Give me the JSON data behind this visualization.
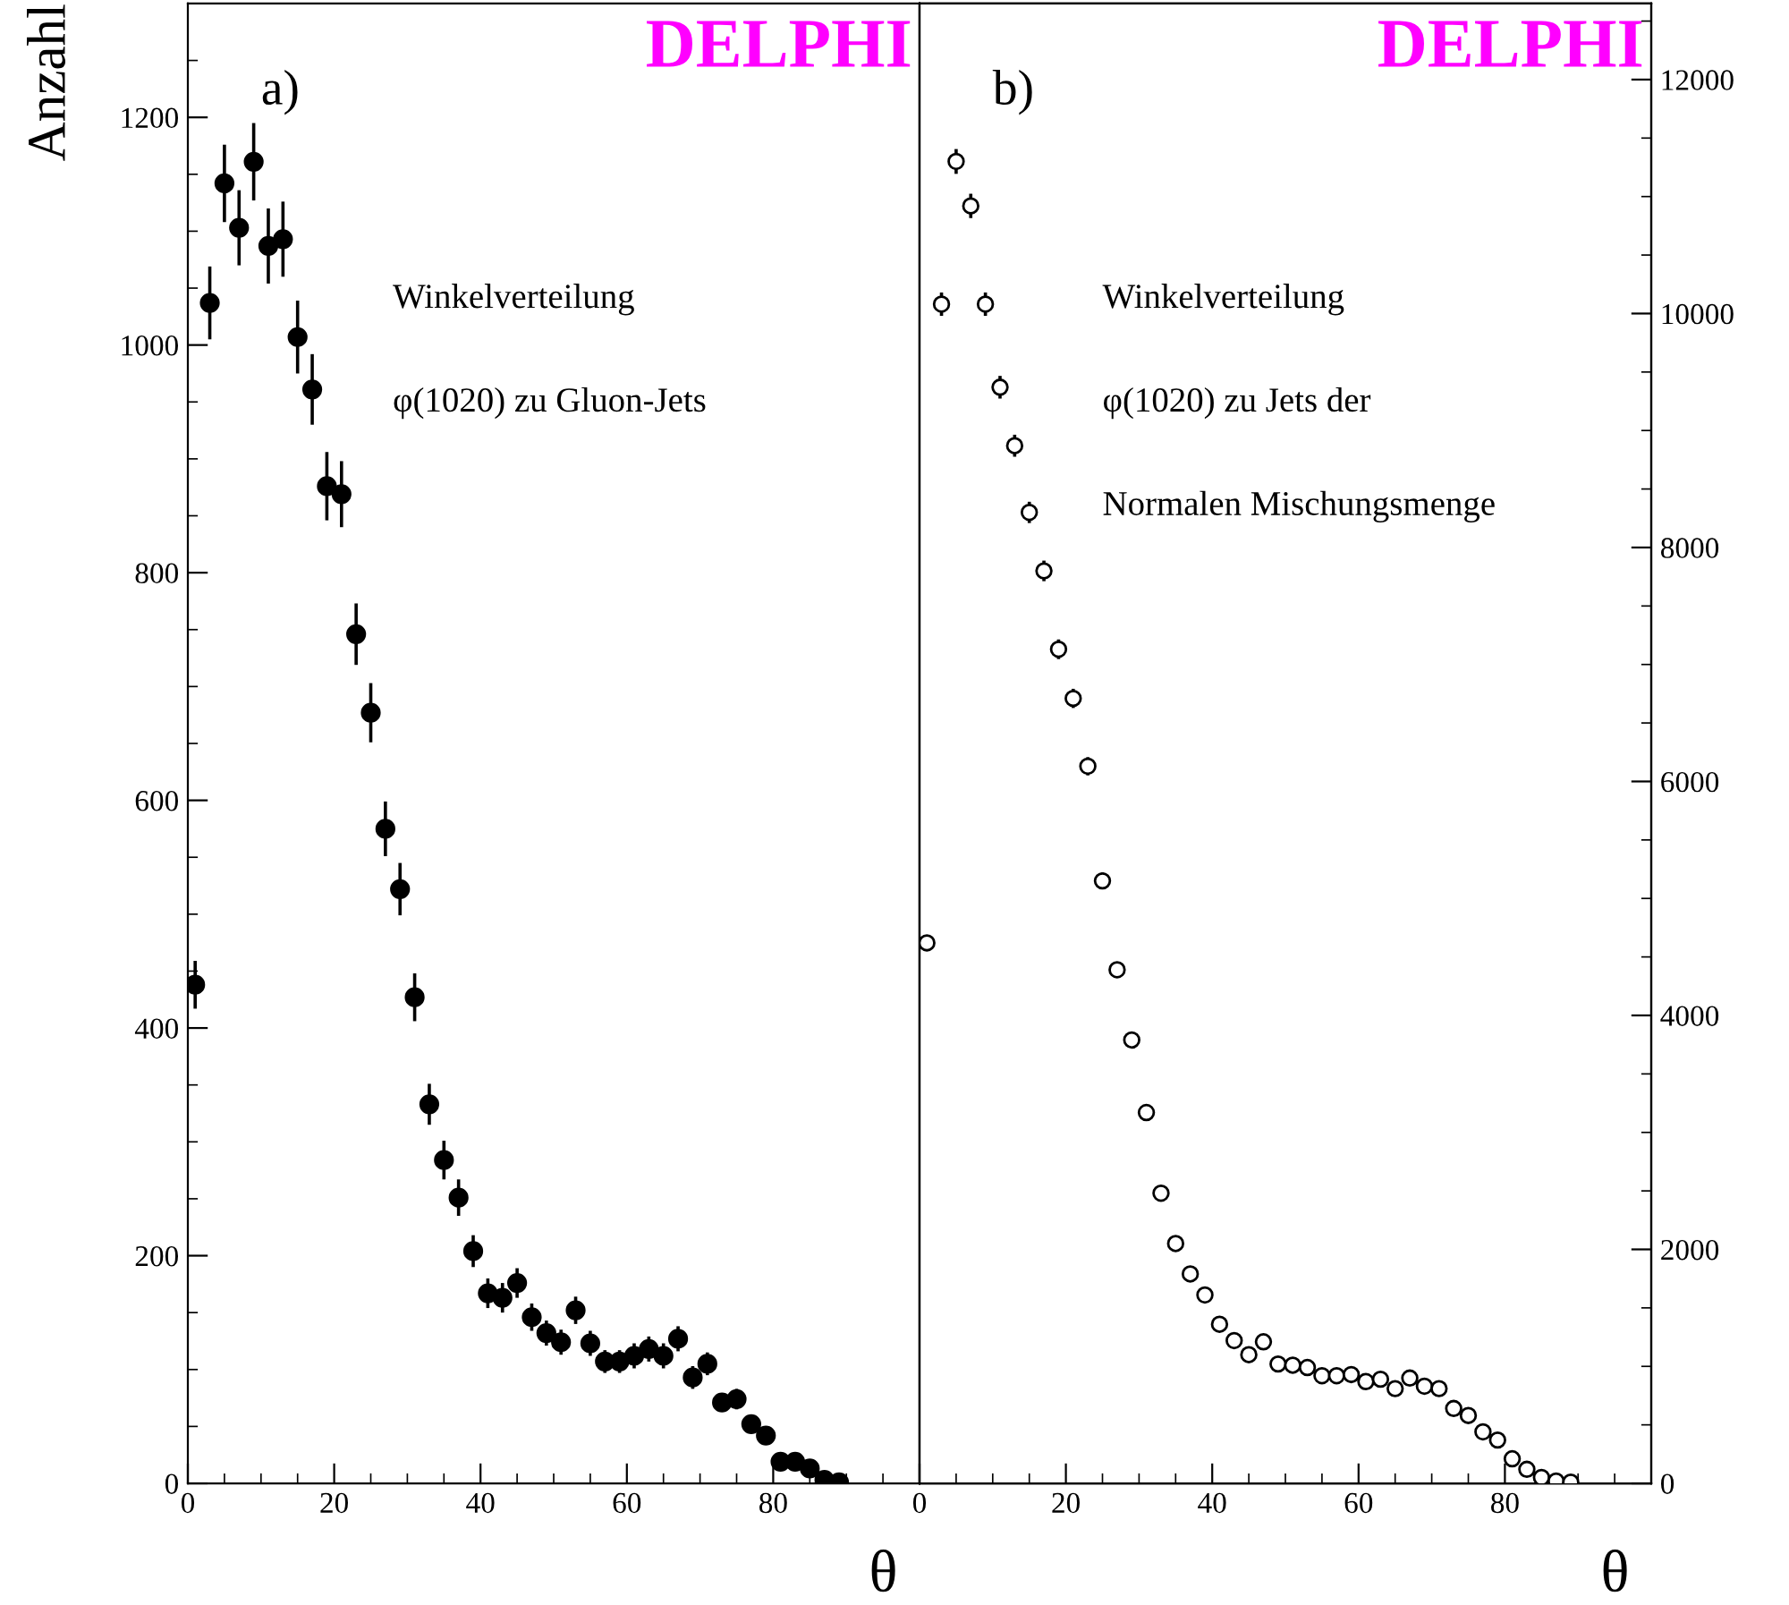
{
  "chart_data": [
    {
      "type": "scatter",
      "ylabel": "Anzahl",
      "xlabel": "θ",
      "marker": "circle",
      "grid": false,
      "annotations": [
        "DELPHI",
        "a)",
        "Winkelverteilung",
        "φ(1020) zu Gluon-Jets"
      ],
      "xlim": [
        0,
        100
      ],
      "xticks": [
        0,
        20,
        40,
        60,
        80
      ],
      "ylim": [
        0,
        1300
      ],
      "yticks": [
        0,
        200,
        400,
        600,
        800,
        1000,
        1200
      ],
      "x": [
        1,
        3,
        5,
        7,
        9,
        11,
        13,
        15,
        17,
        19,
        21,
        23,
        25,
        27,
        29,
        31,
        33,
        35,
        37,
        39,
        41,
        43,
        45,
        47,
        49,
        51,
        53,
        55,
        57,
        59,
        61,
        63,
        65,
        67,
        69,
        71,
        73,
        75,
        77,
        79,
        81,
        83,
        85,
        87,
        89
      ],
      "series": [
        {
          "color": "#000000",
          "values": [
            438,
            1037,
            1142,
            1103,
            1161,
            1087,
            1093,
            1007,
            961,
            876,
            869,
            746,
            677,
            575,
            522,
            427,
            333,
            284,
            251,
            204,
            167,
            163,
            176,
            146,
            132,
            124,
            152,
            123,
            107,
            107,
            112,
            118,
            112,
            127,
            93,
            105,
            71,
            74,
            52,
            42,
            19,
            19,
            13,
            3,
            1
          ],
          "errors": [
            21,
            32,
            34,
            33,
            34,
            33,
            33,
            32,
            31,
            30,
            29,
            27,
            26,
            24,
            23,
            21,
            18,
            17,
            16,
            14,
            13,
            13,
            13,
            12,
            11,
            11,
            12,
            11,
            10,
            10,
            11,
            11,
            11,
            11,
            10,
            10,
            8,
            9,
            7,
            6,
            4,
            4,
            4,
            2,
            1
          ]
        }
      ]
    },
    {
      "type": "scatter",
      "xlabel": "θ",
      "marker": "circle",
      "grid": false,
      "annotations": [
        "DELPHI",
        "b)",
        "Winkelverteilung",
        "φ(1020) zu Jets der",
        "Normalen Mischungsmenge"
      ],
      "xlim": [
        0,
        100
      ],
      "xticks": [
        0,
        20,
        40,
        60,
        80
      ],
      "y2lim": [
        0,
        12650
      ],
      "y2ticks": [
        0,
        2000,
        4000,
        6000,
        8000,
        10000,
        12000
      ],
      "x": [
        1,
        3,
        5,
        7,
        9,
        11,
        13,
        15,
        17,
        19,
        21,
        23,
        25,
        27,
        29,
        31,
        33,
        35,
        37,
        39,
        41,
        43,
        45,
        47,
        49,
        51,
        53,
        55,
        57,
        59,
        61,
        63,
        65,
        67,
        69,
        71,
        73,
        75,
        77,
        79,
        81,
        83,
        85,
        87,
        89
      ],
      "series": [
        {
          "color": "#000000",
          "axis": "y2",
          "values": [
            4620,
            10080,
            11300,
            10920,
            10080,
            9370,
            8870,
            8300,
            7800,
            7130,
            6710,
            6130,
            5150,
            4390,
            3790,
            3170,
            2480,
            2050,
            1790,
            1610,
            1360,
            1220,
            1100,
            1210,
            1020,
            1010,
            990,
            920,
            920,
            930,
            870,
            890,
            810,
            900,
            830,
            810,
            640,
            580,
            440,
            370,
            210,
            120,
            50,
            20,
            10
          ],
          "errors": [
            68,
            100,
            106,
            104,
            100,
            97,
            94,
            91,
            88,
            84,
            82,
            78,
            72,
            66,
            62,
            56,
            50,
            45,
            42,
            40,
            37,
            35,
            33,
            35,
            32,
            32,
            31,
            30,
            30,
            30,
            29,
            30,
            28,
            30,
            29,
            28,
            25,
            24,
            21,
            19,
            14,
            11,
            null,
            null,
            null
          ]
        }
      ]
    }
  ]
}
